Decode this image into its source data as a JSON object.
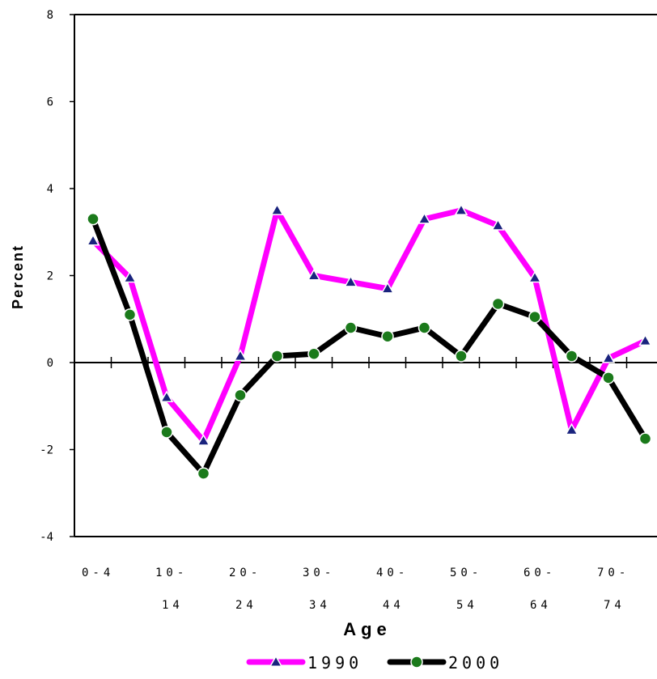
{
  "chart_data": {
    "type": "line",
    "title": "",
    "xlabel": "Age",
    "ylabel": "Percent",
    "ylim": [
      -4,
      8
    ],
    "yticks": [
      "8",
      "6",
      "4",
      "2",
      "0",
      "-2",
      "-4"
    ],
    "ytick_values": [
      8,
      6,
      4,
      2,
      0,
      -2,
      -4
    ],
    "x_tick_labels": [
      {
        "line1": "0-4",
        "line2": "",
        "index": 0
      },
      {
        "line1": "10-",
        "line2": "14",
        "index": 2
      },
      {
        "line1": "20-",
        "line2": "24",
        "index": 4
      },
      {
        "line1": "30-",
        "line2": "34",
        "index": 6
      },
      {
        "line1": "40-",
        "line2": "44",
        "index": 8
      },
      {
        "line1": "50-",
        "line2": "54",
        "index": 10
      },
      {
        "line1": "60-",
        "line2": "64",
        "index": 12
      },
      {
        "line1": "70-",
        "line2": "74",
        "index": 14
      }
    ],
    "num_categories": 16,
    "legend_position": "bottom",
    "series": [
      {
        "name": "1990",
        "color": "#ff00ff",
        "marker": "triangle",
        "marker_color": "#1a237e",
        "values": [
          2.8,
          1.95,
          -0.8,
          -1.8,
          0.15,
          3.5,
          2.0,
          1.85,
          1.7,
          3.3,
          3.5,
          3.15,
          1.95,
          -1.55,
          0.1,
          0.5
        ]
      },
      {
        "name": "2000",
        "color": "#000000",
        "marker": "circle",
        "marker_color": "#1b7a1b",
        "values": [
          3.3,
          1.1,
          -1.6,
          -2.55,
          -0.75,
          0.15,
          0.2,
          0.8,
          0.6,
          0.8,
          0.15,
          1.35,
          1.05,
          0.15,
          -0.35,
          -1.75
        ]
      }
    ]
  }
}
